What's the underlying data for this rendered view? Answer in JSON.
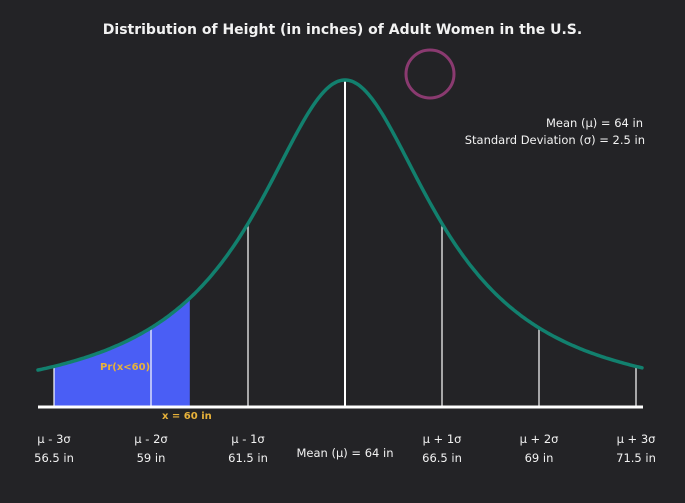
{
  "title": "Distribution of Height (in inches) of Adult Women in the U.S.",
  "stats": {
    "mean": "Mean (μ) = 64 in",
    "sd": "Standard Deviation (σ) = 2.5 in"
  },
  "shaded": {
    "label": "Pr(x<60)",
    "x_label": "x = 60 in",
    "x": 60
  },
  "colors": {
    "curve": "#12806e",
    "fill": "#4a5ef5",
    "accent": "#e8b23a",
    "circle": "#8a3a70",
    "bg": "#232326"
  },
  "chart_data": {
    "type": "area",
    "distribution": "normal",
    "mean": 64,
    "sd": 2.5,
    "shaded_below": 60,
    "ticks": [
      {
        "sigma": "μ - 3σ",
        "value": "56.5 in",
        "x": 56.5
      },
      {
        "sigma": "μ - 2σ",
        "value": "59 in",
        "x": 59
      },
      {
        "sigma": "μ - 1σ",
        "value": "61.5 in",
        "x": 61.5
      },
      {
        "sigma": "Mean (μ) = 64 in",
        "value": "",
        "x": 64
      },
      {
        "sigma": "μ + 1σ",
        "value": "66.5 in",
        "x": 66.5
      },
      {
        "sigma": "μ + 2σ",
        "value": "69 in",
        "x": 69
      },
      {
        "sigma": "μ + 3σ",
        "value": "71.5 in",
        "x": 71.5
      }
    ]
  }
}
